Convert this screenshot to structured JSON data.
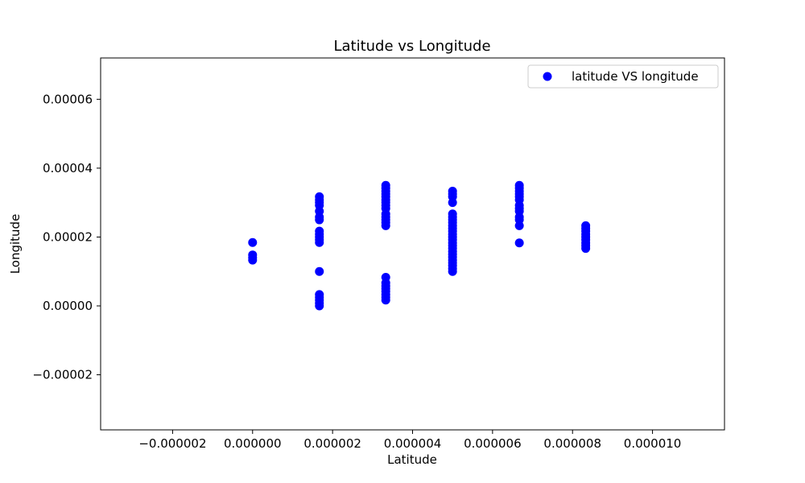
{
  "chart_data": {
    "type": "scatter",
    "title": "Latitude vs Longitude",
    "xlabel": "Latitude",
    "ylabel": "Longitude",
    "xlim": [
      -3.8e-06,
      1.18e-05
    ],
    "ylim": [
      -3.6e-05,
      7.2e-05
    ],
    "xticks": [
      -2e-06,
      0.0,
      2e-06,
      4e-06,
      6e-06,
      8e-06,
      1e-05
    ],
    "xtick_labels": [
      "−0.000002",
      "0.000000",
      "0.000002",
      "0.000004",
      "0.000006",
      "0.000008",
      "0.000010"
    ],
    "yticks": [
      -2e-05,
      0.0,
      2e-05,
      4e-05,
      6e-05
    ],
    "ytick_labels": [
      "−0.00002",
      "0.00000",
      "0.00002",
      "0.00004",
      "0.00006"
    ],
    "legend": {
      "position": "top-right",
      "entries": [
        "latitude VS longitude"
      ]
    },
    "grid": false,
    "colors": {
      "marker": "#0000ff",
      "axis": "#000000",
      "background": "#ffffff"
    },
    "series": [
      {
        "name": "latitude VS longitude",
        "points": [
          [
            0.0,
            1.33e-05
          ],
          [
            0.0,
            1.4e-05
          ],
          [
            0.0,
            1.48e-05
          ],
          [
            0.0,
            1.84e-05
          ],
          [
            1.67e-06,
            0.0
          ],
          [
            1.67e-06,
            8e-07
          ],
          [
            1.67e-06,
            1.7e-06
          ],
          [
            1.67e-06,
            2.5e-06
          ],
          [
            1.67e-06,
            3.3e-06
          ],
          [
            1.67e-06,
            1e-05
          ],
          [
            1.67e-06,
            1.84e-05
          ],
          [
            1.67e-06,
            1.92e-05
          ],
          [
            1.67e-06,
            2e-05
          ],
          [
            1.67e-06,
            2.08e-05
          ],
          [
            1.67e-06,
            2.17e-05
          ],
          [
            1.67e-06,
            2.5e-05
          ],
          [
            1.67e-06,
            2.58e-05
          ],
          [
            1.67e-06,
            2.75e-05
          ],
          [
            1.67e-06,
            2.92e-05
          ],
          [
            1.67e-06,
            3e-05
          ],
          [
            1.67e-06,
            3.08e-05
          ],
          [
            1.67e-06,
            3.17e-05
          ],
          [
            3.33e-06,
            1.7e-06
          ],
          [
            3.33e-06,
            2.5e-06
          ],
          [
            3.33e-06,
            3.3e-06
          ],
          [
            3.33e-06,
            4.2e-06
          ],
          [
            3.33e-06,
            5e-06
          ],
          [
            3.33e-06,
            5.8e-06
          ],
          [
            3.33e-06,
            6.7e-06
          ],
          [
            3.33e-06,
            8.3e-06
          ],
          [
            3.33e-06,
            2.33e-05
          ],
          [
            3.33e-06,
            2.42e-05
          ],
          [
            3.33e-06,
            2.5e-05
          ],
          [
            3.33e-06,
            2.58e-05
          ],
          [
            3.33e-06,
            2.67e-05
          ],
          [
            3.33e-06,
            2.83e-05
          ],
          [
            3.33e-06,
            2.92e-05
          ],
          [
            3.33e-06,
            3e-05
          ],
          [
            3.33e-06,
            3.08e-05
          ],
          [
            3.33e-06,
            3.17e-05
          ],
          [
            3.33e-06,
            3.25e-05
          ],
          [
            3.33e-06,
            3.33e-05
          ],
          [
            3.33e-06,
            3.42e-05
          ],
          [
            3.33e-06,
            3.5e-05
          ],
          [
            5e-06,
            1e-05
          ],
          [
            5e-06,
            1.08e-05
          ],
          [
            5e-06,
            1.17e-05
          ],
          [
            5e-06,
            1.25e-05
          ],
          [
            5e-06,
            1.33e-05
          ],
          [
            5e-06,
            1.42e-05
          ],
          [
            5e-06,
            1.5e-05
          ],
          [
            5e-06,
            1.58e-05
          ],
          [
            5e-06,
            1.67e-05
          ],
          [
            5e-06,
            1.75e-05
          ],
          [
            5e-06,
            1.83e-05
          ],
          [
            5e-06,
            1.92e-05
          ],
          [
            5e-06,
            2e-05
          ],
          [
            5e-06,
            2.08e-05
          ],
          [
            5e-06,
            2.17e-05
          ],
          [
            5e-06,
            2.25e-05
          ],
          [
            5e-06,
            2.33e-05
          ],
          [
            5e-06,
            2.42e-05
          ],
          [
            5e-06,
            2.5e-05
          ],
          [
            5e-06,
            2.58e-05
          ],
          [
            5e-06,
            2.67e-05
          ],
          [
            5e-06,
            3e-05
          ],
          [
            5e-06,
            3.17e-05
          ],
          [
            5e-06,
            3.25e-05
          ],
          [
            5e-06,
            3.33e-05
          ],
          [
            6.67e-06,
            1.83e-05
          ],
          [
            6.67e-06,
            2.33e-05
          ],
          [
            6.67e-06,
            2.5e-05
          ],
          [
            6.67e-06,
            2.58e-05
          ],
          [
            6.67e-06,
            2.75e-05
          ],
          [
            6.67e-06,
            2.83e-05
          ],
          [
            6.67e-06,
            2.92e-05
          ],
          [
            6.67e-06,
            3.08e-05
          ],
          [
            6.67e-06,
            3.17e-05
          ],
          [
            6.67e-06,
            3.25e-05
          ],
          [
            6.67e-06,
            3.33e-05
          ],
          [
            6.67e-06,
            3.42e-05
          ],
          [
            6.67e-06,
            3.5e-05
          ],
          [
            8.33e-06,
            1.67e-05
          ],
          [
            8.33e-06,
            1.75e-05
          ],
          [
            8.33e-06,
            1.83e-05
          ],
          [
            8.33e-06,
            1.92e-05
          ],
          [
            8.33e-06,
            2e-05
          ],
          [
            8.33e-06,
            2.08e-05
          ],
          [
            8.33e-06,
            2.17e-05
          ],
          [
            8.33e-06,
            2.25e-05
          ],
          [
            8.33e-06,
            2.33e-05
          ]
        ]
      }
    ]
  }
}
